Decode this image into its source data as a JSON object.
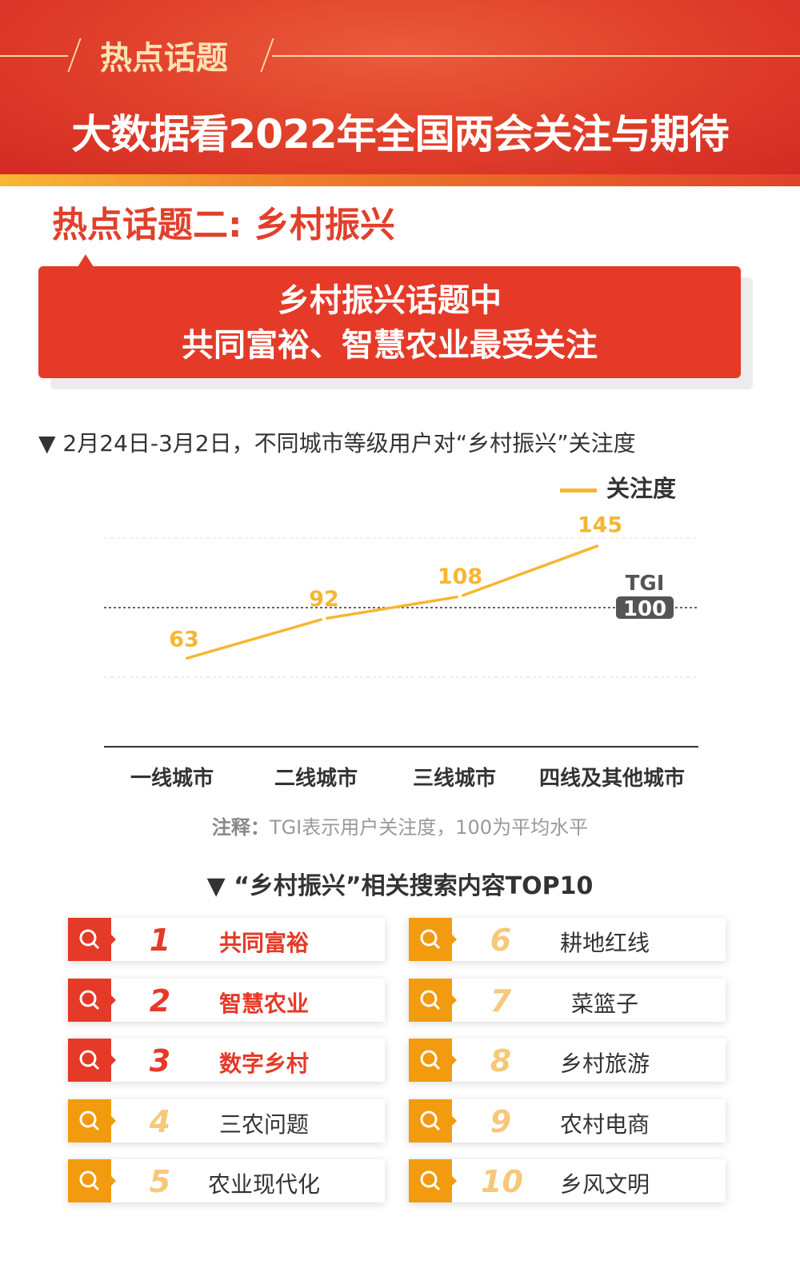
{
  "header": {
    "tag": "热点话题",
    "title": "大数据看2022年全国两会关注与期待"
  },
  "subtitle": "热点话题二: 乡村振兴",
  "callout": {
    "line1": "乡村振兴话题中",
    "line2": "共同富裕、智慧农业最受关注"
  },
  "colors": {
    "red": "#e53a28",
    "orange": "#f29b0f",
    "line": "#f6b632",
    "rank_light": "#f7c87a"
  },
  "chart_data": {
    "type": "line",
    "title": "▼ 2月24日-3月2日，不同城市等级用户对“乡村振兴”关注度",
    "categories": [
      "一线城市",
      "二线城市",
      "三线城市",
      "四线及其他城市"
    ],
    "series": [
      {
        "name": "关注度",
        "values": [
          63,
          92,
          108,
          145
        ]
      }
    ],
    "ylim": [
      0,
      150
    ],
    "reference": {
      "label": "TGI",
      "value": 100
    },
    "grid": true,
    "legend": "top-right"
  },
  "note": {
    "label": "注释：",
    "text": "TGI表示用户关注度，100为平均水平"
  },
  "top10": {
    "title": "▼ “乡村振兴”相关搜索内容TOP10",
    "items": [
      {
        "rank": "1",
        "kw": "共同富裕"
      },
      {
        "rank": "2",
        "kw": "智慧农业"
      },
      {
        "rank": "3",
        "kw": "数字乡村"
      },
      {
        "rank": "4",
        "kw": "三农问题"
      },
      {
        "rank": "5",
        "kw": "农业现代化"
      },
      {
        "rank": "6",
        "kw": "耕地红线"
      },
      {
        "rank": "7",
        "kw": "菜篮子"
      },
      {
        "rank": "8",
        "kw": "乡村旅游"
      },
      {
        "rank": "9",
        "kw": "农村电商"
      },
      {
        "rank": "10",
        "kw": "乡风文明"
      }
    ]
  }
}
